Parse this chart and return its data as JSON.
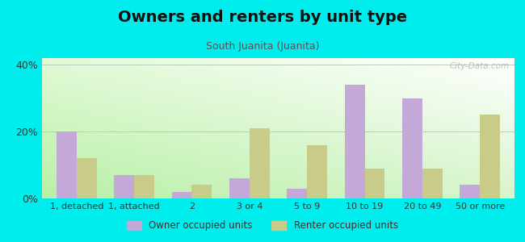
{
  "title": "Owners and renters by unit type",
  "subtitle": "South Juanita (Juanita)",
  "categories": [
    "1, detached",
    "1, attached",
    "2",
    "3 or 4",
    "5 to 9",
    "10 to 19",
    "20 to 49",
    "50 or more"
  ],
  "owner_values": [
    20,
    7,
    2,
    6,
    3,
    34,
    30,
    4
  ],
  "renter_values": [
    12,
    7,
    4,
    21,
    16,
    9,
    9,
    25
  ],
  "owner_color": "#c4a8d8",
  "renter_color": "#c8cc88",
  "background_outer": "#00eded",
  "ylim": [
    0,
    42
  ],
  "yticks": [
    0,
    20,
    40
  ],
  "ytick_labels": [
    "0%",
    "20%",
    "40%"
  ],
  "bar_width": 0.35,
  "legend_owner": "Owner occupied units",
  "legend_renter": "Renter occupied units",
  "watermark": "City-Data.com",
  "title_fontsize": 14,
  "subtitle_fontsize": 9
}
